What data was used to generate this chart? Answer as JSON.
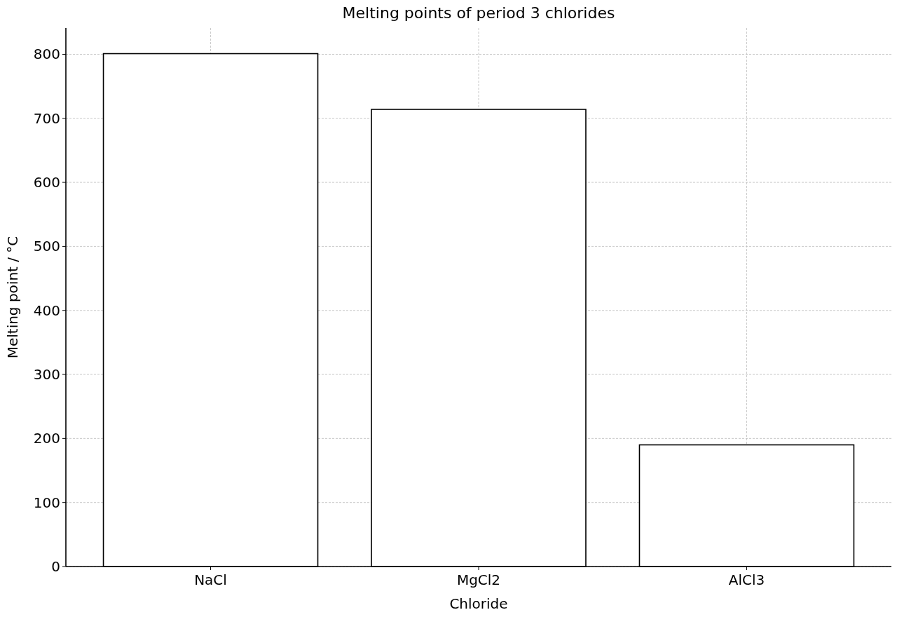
{
  "chart_data": {
    "type": "bar",
    "title": "Melting points of period 3 chlorides",
    "xlabel": "Chloride",
    "ylabel": "Melting point / °C",
    "categories": [
      "NaCl",
      "MgCl2",
      "AlCl3"
    ],
    "values": [
      801,
      714,
      190
    ],
    "color": "#ffffff",
    "ylim": [
      0,
      841
    ],
    "yticks": [
      0,
      100,
      200,
      300,
      400,
      500,
      600,
      700,
      800
    ],
    "grid": true
  }
}
